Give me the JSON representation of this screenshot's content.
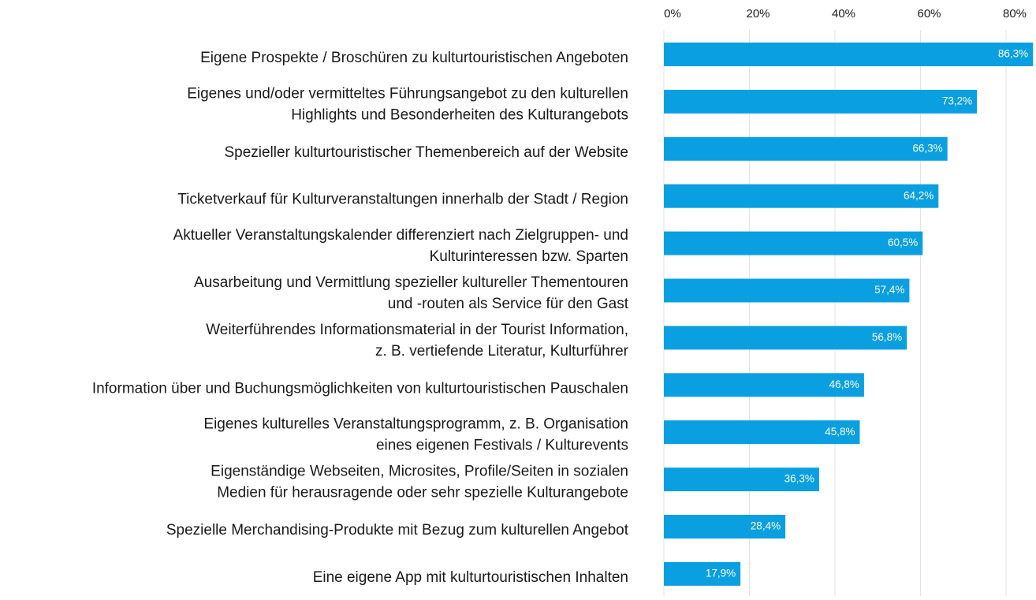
{
  "chart_data": {
    "type": "bar",
    "orientation": "horizontal",
    "categories": [
      [
        "Eigene Prospekte / Broschüren zu kulturtouristischen Angeboten"
      ],
      [
        "Eigenes und/oder vermitteltes Führungsangebot zu den kulturellen",
        "Highlights und Besonderheiten des Kulturangebots"
      ],
      [
        "Spezieller kulturtouristischer Themenbereich auf der Website"
      ],
      [
        "Ticketverkauf für Kulturveranstaltungen innerhalb der Stadt / Region"
      ],
      [
        "Aktueller Veranstaltungskalender differenziert nach Zielgruppen- und",
        "Kulturinteressen bzw. Sparten"
      ],
      [
        "Ausarbeitung und Vermittlung spezieller kultureller Thementouren",
        "und -routen als Service für den Gast"
      ],
      [
        "Weiterführendes Informationsmaterial in der Tourist Information,",
        "z. B. vertiefende Literatur, Kulturführer"
      ],
      [
        "Information über und Buchungsmöglichkeiten von kulturtouristischen Pauschalen"
      ],
      [
        "Eigenes kulturelles Veranstaltungsprogramm, z. B. Organisation",
        "eines eigenen Festivals / Kulturevents"
      ],
      [
        "Eigenständige Webseiten, Microsites, Profile/Seiten in sozialen",
        "Medien für herausragende oder sehr spezielle Kulturangebote"
      ],
      [
        "Spezielle Merchandising-Produkte mit Bezug zum kulturellen Angebot"
      ],
      [
        "Eine eigene App mit kulturtouristischen Inhalten"
      ]
    ],
    "values": [
      86.3,
      73.2,
      66.3,
      64.2,
      60.5,
      57.4,
      56.8,
      46.8,
      45.8,
      36.3,
      28.4,
      17.9
    ],
    "value_labels": [
      "86,3%",
      "73,2%",
      "66,3%",
      "64,2%",
      "60,5%",
      "57,4%",
      "56,8%",
      "46,8%",
      "45,8%",
      "36,3%",
      "28,4%",
      "17,9%"
    ],
    "color": "#0a9fe0",
    "xlim": [
      0,
      87
    ],
    "xticks": [
      {
        "value": 0,
        "label": "0%"
      },
      {
        "value": 20,
        "label": "20%"
      },
      {
        "value": 40,
        "label": "40%"
      },
      {
        "value": 60,
        "label": "60%"
      },
      {
        "value": 80,
        "label": "80%"
      }
    ],
    "grid": true
  }
}
